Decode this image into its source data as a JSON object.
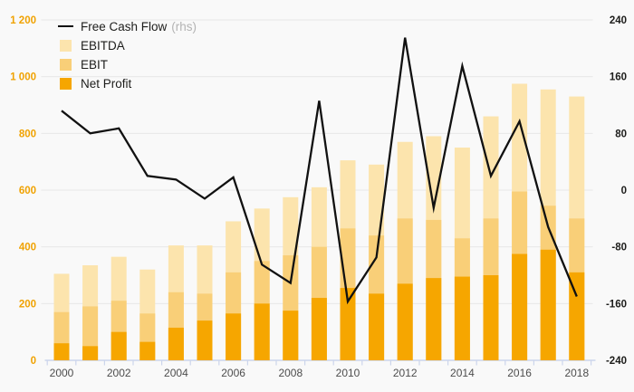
{
  "chart_data": {
    "type": "bar",
    "subtype": "overlapping-stacked-bars-with-line-overlay",
    "title": "",
    "categories": [
      "2000",
      "2001",
      "2002",
      "2003",
      "2004",
      "2005",
      "2006",
      "2007",
      "2008",
      "2009",
      "2010",
      "2011",
      "2012",
      "2013",
      "2014",
      "2015",
      "2016",
      "2017",
      "2018"
    ],
    "series": [
      {
        "name": "EBITDA",
        "kind": "bar",
        "axis": "left",
        "color": "#fce4ad",
        "values": [
          305,
          335,
          365,
          320,
          405,
          405,
          490,
          535,
          575,
          610,
          705,
          690,
          770,
          790,
          750,
          860,
          975,
          955,
          930
        ]
      },
      {
        "name": "EBIT",
        "kind": "bar",
        "axis": "left",
        "color": "#f9cf78",
        "values": [
          170,
          190,
          210,
          165,
          240,
          235,
          310,
          350,
          370,
          400,
          465,
          440,
          500,
          495,
          430,
          500,
          595,
          545,
          500
        ]
      },
      {
        "name": "Net Profit",
        "kind": "bar",
        "axis": "left",
        "color": "#f6a600",
        "values": [
          60,
          50,
          100,
          65,
          115,
          140,
          165,
          200,
          175,
          220,
          255,
          235,
          270,
          290,
          295,
          300,
          375,
          390,
          310
        ]
      },
      {
        "name": "Free Cash Flow",
        "kind": "line",
        "axis": "right",
        "color": "#111111",
        "values": [
          112,
          80,
          87,
          20,
          15,
          -12,
          18,
          -105,
          -131,
          126,
          -157,
          -95,
          215,
          -25,
          175,
          20,
          97,
          -52,
          -150
        ]
      }
    ],
    "note": "bar series values are cumulative levels read on the left axis; line read on the right axis",
    "left_axis": {
      "min": 0,
      "max": 1200,
      "step": 200,
      "labels": [
        "0",
        "200",
        "400",
        "600",
        "800",
        "1 000",
        "1 200"
      ],
      "label_color": "#f0a202"
    },
    "right_axis": {
      "min": -240,
      "max": 240,
      "step": 80,
      "labels": [
        "-240",
        "-160",
        "-80",
        "0",
        "80",
        "160",
        "240"
      ],
      "label_color": "#1d1d1b"
    },
    "x_axis": {
      "labels": [
        "2000",
        "2002",
        "2004",
        "2006",
        "2008",
        "2010",
        "2012",
        "2014",
        "2016",
        "2018"
      ],
      "label_color": "#4d4d4d"
    },
    "legend": {
      "position": "top-left",
      "items": [
        {
          "label": "Free Cash Flow",
          "suffix": "(rhs)",
          "marker": "line",
          "color": "#111111"
        },
        {
          "label": "EBITDA",
          "suffix": "",
          "marker": "square",
          "color": "#fce4ad"
        },
        {
          "label": "EBIT",
          "suffix": "",
          "marker": "square",
          "color": "#f9cf78"
        },
        {
          "label": "Net Profit",
          "suffix": "",
          "marker": "square",
          "color": "#f6a600"
        }
      ]
    },
    "grid": true,
    "background": "#f9f9f9",
    "gridline_color": "#e7e7e7",
    "axisline_color": "#ccd5ec"
  }
}
